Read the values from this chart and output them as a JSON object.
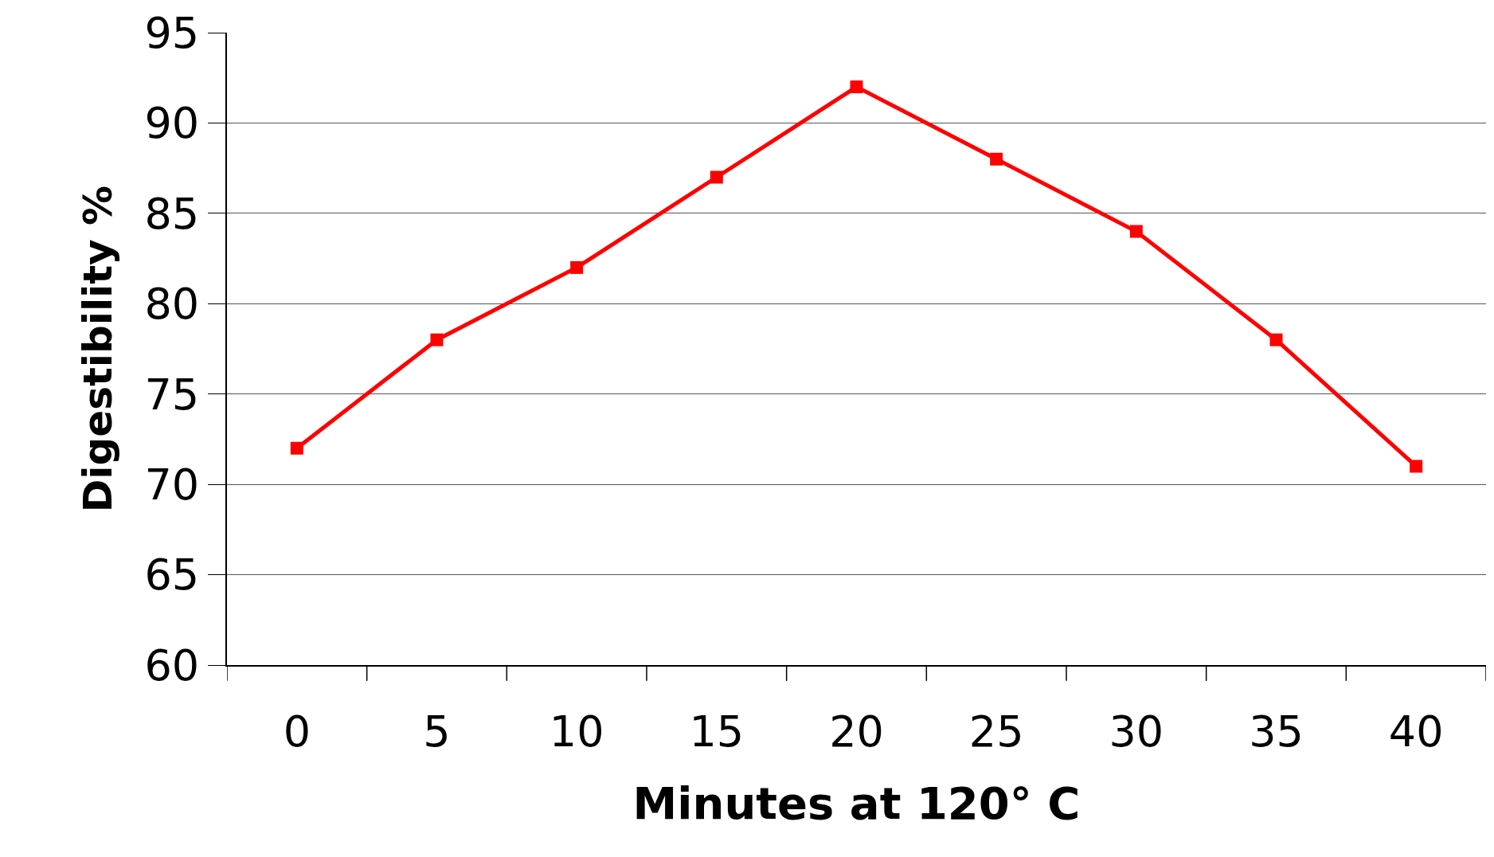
{
  "chart_data": {
    "type": "line",
    "xlabel": "Minutes at 120° C",
    "ylabel": "Digestibility %",
    "categories": [
      "0",
      "5",
      "10",
      "15",
      "20",
      "25",
      "30",
      "35",
      "40"
    ],
    "series": [
      {
        "color": "#ff0000",
        "values": [
          72,
          78,
          82,
          87,
          92,
          88,
          84,
          78,
          71
        ]
      }
    ],
    "ylim": [
      60,
      95
    ],
    "yticks": [
      60,
      65,
      70,
      75,
      80,
      85,
      90,
      95
    ],
    "grid": "y",
    "marker": "square",
    "line_style": "solid"
  }
}
